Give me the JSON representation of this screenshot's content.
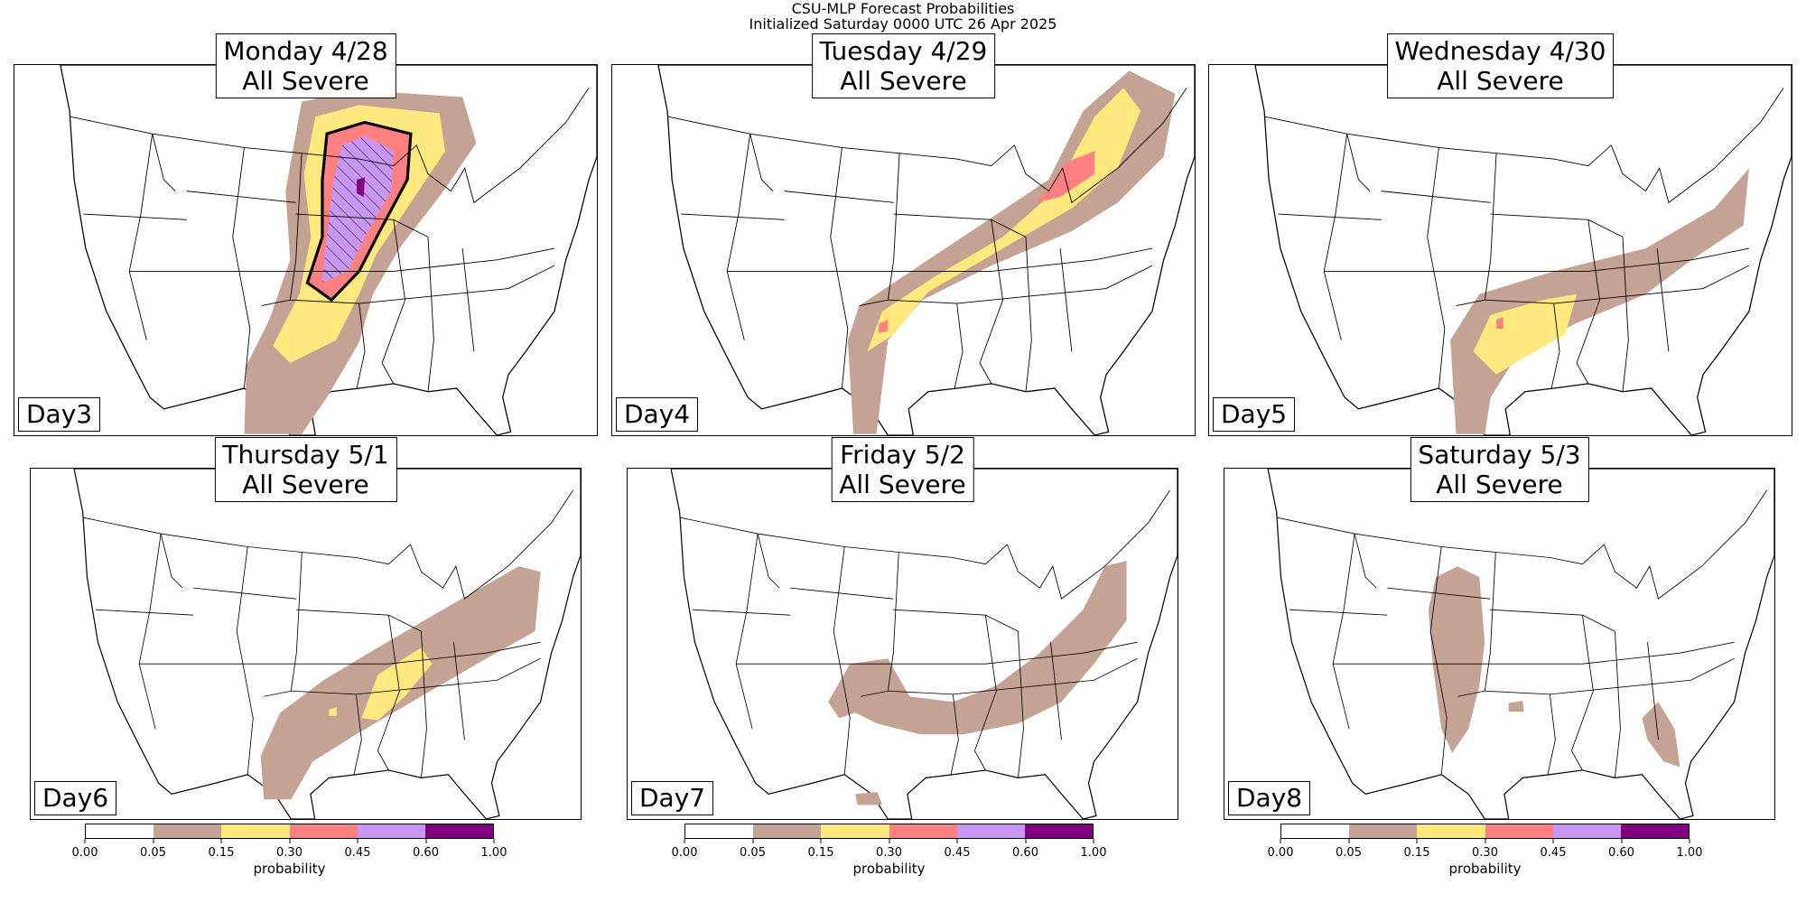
{
  "title": {
    "line1": "CSU-MLP Forecast Probabilities",
    "line2": "Initialized Saturday 0000 UTC 26 Apr 2025"
  },
  "panels": [
    {
      "title": "Monday 4/28",
      "subtitle": "All Severe",
      "day": "Day3",
      "max_level": "0.60-1.00",
      "hatched": true
    },
    {
      "title": "Tuesday 4/29",
      "subtitle": "All Severe",
      "day": "Day4",
      "max_level": "0.30-0.45",
      "hatched": false
    },
    {
      "title": "Wednesday 4/30",
      "subtitle": "All Severe",
      "day": "Day5",
      "max_level": "0.30-0.45",
      "hatched": false
    },
    {
      "title": "Thursday 5/1",
      "subtitle": "All Severe",
      "day": "Day6",
      "max_level": "0.15-0.30",
      "hatched": false
    },
    {
      "title": "Friday 5/2",
      "subtitle": "All Severe",
      "day": "Day7",
      "max_level": "0.05-0.15",
      "hatched": false
    },
    {
      "title": "Saturday 5/3",
      "subtitle": "All Severe",
      "day": "Day8",
      "max_level": "0.05-0.15",
      "hatched": false
    }
  ],
  "chart_data": {
    "type": "heatmap",
    "title": "CSU-MLP Forecast Probabilities",
    "colorbar": {
      "label": "probability",
      "ticks": [
        "0.00",
        "0.05",
        "0.15",
        "0.30",
        "0.45",
        "0.60",
        "1.00"
      ],
      "bins": [
        [
          0.0,
          0.05
        ],
        [
          0.05,
          0.15
        ],
        [
          0.15,
          0.3
        ],
        [
          0.3,
          0.45
        ],
        [
          0.45,
          0.6
        ],
        [
          0.6,
          1.0
        ]
      ],
      "colors": [
        "#ffffff",
        "#c4a394",
        "#ffe97f",
        "#ff8080",
        "#c896f5",
        "#800080"
      ]
    }
  }
}
